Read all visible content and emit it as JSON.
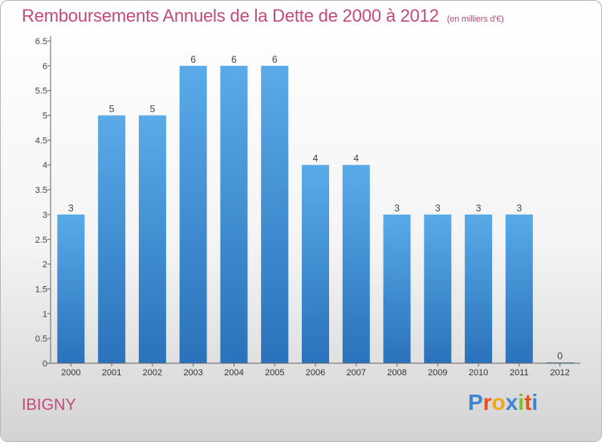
{
  "title": "Remboursements Annuels de la Dette de 2000 à 2012",
  "unit": "(en milliers d'€)",
  "commune": "IBIGNY",
  "logo": {
    "letters": [
      "P",
      "r",
      "o",
      "x",
      "i",
      "t",
      "i"
    ],
    "colors": [
      "#3a86d3",
      "#e8511e",
      "#f2a61c",
      "#3a86d3",
      "#7bbf29",
      "#e8511e",
      "#3a86d3"
    ]
  },
  "colors": {
    "bar": "#4f9fe0",
    "bar_dark": "#2e76bf",
    "title": "#c44a7a",
    "axis": "#555555"
  },
  "chart_data": {
    "type": "bar",
    "title": "Remboursements Annuels de la Dette de 2000 à 2012",
    "categories": [
      "2000",
      "2001",
      "2002",
      "2003",
      "2004",
      "2005",
      "2006",
      "2007",
      "2008",
      "2009",
      "2010",
      "2011",
      "2012"
    ],
    "values": [
      3,
      5,
      5,
      6,
      6,
      6,
      4,
      4,
      3,
      3,
      3,
      3,
      0
    ],
    "data_labels": [
      "3",
      "5",
      "5",
      "6",
      "6",
      "6",
      "4",
      "4",
      "3",
      "3",
      "3",
      "3",
      "0"
    ],
    "ylim": [
      0,
      6.5
    ],
    "yticks": [
      0,
      0.5,
      1,
      1.5,
      2,
      2.5,
      3,
      3.5,
      4,
      4.5,
      5,
      5.5,
      6,
      6.5
    ],
    "ytick_labels": [
      "0",
      "0.5",
      "1",
      "1.5",
      "2",
      "2.5",
      "3",
      "3.5",
      "4",
      "4.5",
      "5",
      "5.5",
      "6",
      "6.5"
    ],
    "grid": false
  }
}
